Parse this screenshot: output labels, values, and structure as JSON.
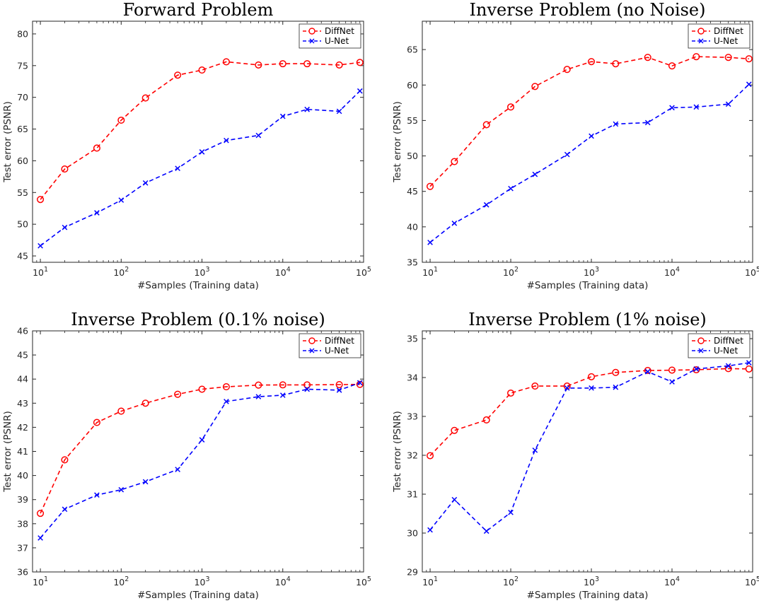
{
  "chart_data": [
    {
      "type": "line",
      "title": "Forward Problem",
      "xlabel": "#Samples (Training data)",
      "ylabel": "Test error (PSNR)",
      "xscale": "log",
      "xlim": [
        8,
        100000
      ],
      "ylim": [
        44,
        82
      ],
      "yticks": [
        45,
        50,
        55,
        60,
        65,
        70,
        75,
        80
      ],
      "legend_position": "top-right",
      "x": [
        10,
        20,
        50,
        100,
        200,
        500,
        1000,
        2000,
        5000,
        10000,
        20000,
        50000,
        90000
      ],
      "series": [
        {
          "name": "DiffNet",
          "color": "#ff0000",
          "marker": "circle",
          "values": [
            53.9,
            58.7,
            62.0,
            66.4,
            69.9,
            73.5,
            74.3,
            75.6,
            75.1,
            75.3,
            75.3,
            75.1,
            75.5
          ]
        },
        {
          "name": "U-Net",
          "color": "#0000ff",
          "marker": "x",
          "values": [
            46.6,
            49.5,
            51.8,
            53.8,
            56.5,
            58.8,
            61.4,
            63.2,
            64.0,
            67.0,
            68.1,
            67.8,
            71.0
          ]
        }
      ]
    },
    {
      "type": "line",
      "title": "Inverse Problem (no Noise)",
      "xlabel": "#Samples (Training data)",
      "ylabel": "Test error (PSNR)",
      "xscale": "log",
      "xlim": [
        8,
        100000
      ],
      "ylim": [
        35,
        69
      ],
      "yticks": [
        35,
        40,
        45,
        50,
        55,
        60,
        65
      ],
      "legend_position": "top-right",
      "x": [
        10,
        20,
        50,
        100,
        200,
        500,
        1000,
        2000,
        5000,
        10000,
        20000,
        50000,
        90000
      ],
      "series": [
        {
          "name": "DiffNet",
          "color": "#ff0000",
          "marker": "circle",
          "values": [
            45.7,
            49.2,
            54.4,
            56.9,
            59.8,
            62.2,
            63.3,
            63.0,
            63.9,
            62.7,
            64.0,
            63.9,
            63.7
          ]
        },
        {
          "name": "U-Net",
          "color": "#0000ff",
          "marker": "x",
          "values": [
            37.8,
            40.5,
            43.1,
            45.4,
            47.4,
            50.2,
            52.8,
            54.5,
            54.7,
            56.8,
            56.9,
            57.3,
            60.1
          ]
        }
      ]
    },
    {
      "type": "line",
      "title": "Inverse Problem (0.1% noise)",
      "xlabel": "#Samples (Training data)",
      "ylabel": "Test error (PSNR)",
      "xscale": "log",
      "xlim": [
        8,
        100000
      ],
      "ylim": [
        36,
        46
      ],
      "yticks": [
        36,
        37,
        38,
        39,
        40,
        41,
        42,
        43,
        44,
        45,
        46
      ],
      "legend_position": "top-right",
      "x": [
        10,
        20,
        50,
        100,
        200,
        500,
        1000,
        2000,
        5000,
        10000,
        20000,
        50000,
        90000
      ],
      "series": [
        {
          "name": "DiffNet",
          "color": "#ff0000",
          "marker": "circle",
          "values": [
            38.43,
            40.65,
            42.2,
            42.67,
            43.0,
            43.37,
            43.58,
            43.68,
            43.75,
            43.76,
            43.76,
            43.77,
            43.78
          ]
        },
        {
          "name": "U-Net",
          "color": "#0000ff",
          "marker": "x",
          "values": [
            37.41,
            38.6,
            39.19,
            39.41,
            39.74,
            40.25,
            41.48,
            43.07,
            43.27,
            43.33,
            43.58,
            43.54,
            43.85
          ]
        }
      ]
    },
    {
      "type": "line",
      "title": "Inverse Problem (1% noise)",
      "xlabel": "#Samples (Training data)",
      "ylabel": "Test error (PSNR)",
      "xscale": "log",
      "xlim": [
        8,
        100000
      ],
      "ylim": [
        29,
        35.2
      ],
      "yticks": [
        29,
        30,
        31,
        32,
        33,
        34,
        35
      ],
      "legend_position": "top-right",
      "x": [
        10,
        20,
        50,
        100,
        200,
        500,
        1000,
        2000,
        5000,
        10000,
        20000,
        50000,
        90000
      ],
      "series": [
        {
          "name": "DiffNet",
          "color": "#ff0000",
          "marker": "circle",
          "values": [
            31.99,
            32.64,
            32.91,
            33.6,
            33.78,
            33.78,
            34.02,
            34.13,
            34.18,
            34.19,
            34.2,
            34.23,
            34.22
          ]
        },
        {
          "name": "U-Net",
          "color": "#0000ff",
          "marker": "x",
          "values": [
            30.08,
            30.86,
            30.05,
            30.53,
            32.13,
            33.73,
            33.73,
            33.75,
            34.15,
            33.89,
            34.22,
            34.3,
            34.38
          ]
        }
      ]
    }
  ]
}
